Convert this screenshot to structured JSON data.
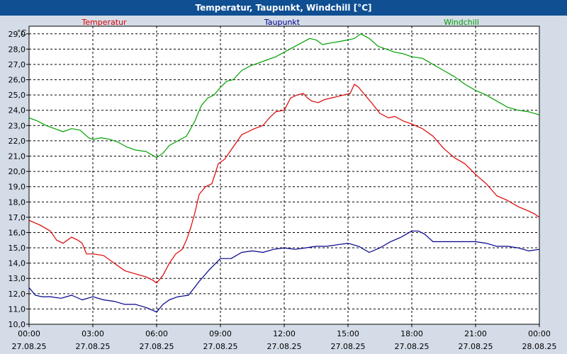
{
  "window": {
    "title": "Temperatur, Taupunkt, Windchill [°C]"
  },
  "chart_data": {
    "type": "line",
    "title": "Temperatur, Taupunkt, Windchill [°C]",
    "ylabel": "°C",
    "xlabel": "",
    "ylim": [
      10.0,
      29.5
    ],
    "xlim_hours": [
      0,
      24
    ],
    "grid": true,
    "y_ticks": [
      "10,0",
      "11,0",
      "12,0",
      "13,0",
      "14,0",
      "15,0",
      "16,0",
      "17,0",
      "18,0",
      "19,0",
      "20,0",
      "21,0",
      "22,0",
      "23,0",
      "24,0",
      "25,0",
      "26,0",
      "27,0",
      "28,0",
      "29,0"
    ],
    "x_ticks": [
      {
        "time": "00:00",
        "date": "27.08.25"
      },
      {
        "time": "03:00",
        "date": "27.08.25"
      },
      {
        "time": "06:00",
        "date": "27.08.25"
      },
      {
        "time": "09:00",
        "date": "27.08.25"
      },
      {
        "time": "12:00",
        "date": "27.08.25"
      },
      {
        "time": "15:00",
        "date": "27.08.25"
      },
      {
        "time": "18:00",
        "date": "27.08.25"
      },
      {
        "time": "21:00",
        "date": "27.08.25"
      },
      {
        "time": "00:00",
        "date": "28.08.25"
      }
    ],
    "series": [
      {
        "name": "Temperatur",
        "color": "#dd0000",
        "x": [
          0,
          0.5,
          1,
          1.3,
          1.6,
          1.8,
          2,
          2.3,
          2.5,
          2.7,
          3,
          3.5,
          3.8,
          4,
          4.5,
          5,
          5.5,
          5.8,
          6,
          6.3,
          6.6,
          6.9,
          7.2,
          7.4,
          7.6,
          7.8,
          8,
          8.3,
          8.6,
          8.9,
          9.2,
          9.6,
          10,
          10.3,
          10.6,
          11,
          11.3,
          11.6,
          12,
          12.3,
          12.6,
          12.9,
          13.1,
          13.3,
          13.6,
          13.9,
          14.2,
          14.5,
          14.8,
          15.1,
          15.3,
          15.5,
          15.8,
          16.1,
          16.5,
          16.9,
          17.2,
          17.6,
          18,
          18.5,
          19,
          19.5,
          20,
          20.5,
          21,
          21.5,
          22,
          22.5,
          23,
          23.5,
          23.8,
          24
        ],
        "values": [
          16.8,
          16.5,
          16.1,
          15.5,
          15.3,
          15.5,
          15.7,
          15.5,
          15.3,
          14.6,
          14.6,
          14.5,
          14.2,
          14.0,
          13.5,
          13.3,
          13.1,
          12.9,
          12.7,
          13.2,
          14.0,
          14.6,
          14.9,
          15.5,
          16.3,
          17.3,
          18.5,
          19.0,
          19.2,
          20.5,
          20.8,
          21.6,
          22.4,
          22.6,
          22.8,
          23.0,
          23.5,
          23.9,
          24.0,
          24.8,
          25.0,
          25.1,
          24.8,
          24.6,
          24.5,
          24.7,
          24.8,
          24.9,
          25.0,
          25.1,
          25.7,
          25.5,
          25.0,
          24.5,
          23.8,
          23.5,
          23.6,
          23.3,
          23.1,
          22.8,
          22.3,
          21.5,
          20.9,
          20.5,
          19.8,
          19.2,
          18.4,
          18.1,
          17.7,
          17.4,
          17.2,
          17.0
        ]
      },
      {
        "name": "Taupunkt",
        "color": "#00008b",
        "x": [
          0,
          0.3,
          0.6,
          1,
          1.5,
          2,
          2.5,
          3,
          3.5,
          4,
          4.5,
          5,
          5.5,
          6,
          6.3,
          6.6,
          7,
          7.5,
          8,
          8.5,
          9,
          9.5,
          10,
          10.5,
          11,
          11.5,
          12,
          12.5,
          13,
          13.5,
          14,
          14.5,
          15,
          15.5,
          16,
          16.5,
          17,
          17.5,
          18,
          18.3,
          18.6,
          19,
          19.5,
          20,
          20.5,
          21,
          21.5,
          22,
          22.5,
          23,
          23.5,
          24
        ],
        "values": [
          12.4,
          11.9,
          11.8,
          11.8,
          11.7,
          11.9,
          11.6,
          11.8,
          11.6,
          11.5,
          11.3,
          11.3,
          11.1,
          10.8,
          11.3,
          11.6,
          11.8,
          11.9,
          12.8,
          13.6,
          14.3,
          14.3,
          14.7,
          14.8,
          14.7,
          14.9,
          15.0,
          14.9,
          15.0,
          15.1,
          15.1,
          15.2,
          15.3,
          15.1,
          14.7,
          15.0,
          15.4,
          15.7,
          16.1,
          16.1,
          15.9,
          15.4,
          15.4,
          15.4,
          15.4,
          15.4,
          15.3,
          15.1,
          15.1,
          15.0,
          14.8,
          14.9
        ]
      },
      {
        "name": "Windchill",
        "color": "#00a000",
        "x": [
          0,
          0.4,
          0.8,
          1.2,
          1.6,
          2,
          2.4,
          2.8,
          3,
          3.4,
          3.8,
          4.2,
          4.6,
          5,
          5.5,
          6,
          6.3,
          6.6,
          7,
          7.4,
          7.8,
          8.1,
          8.4,
          8.7,
          9,
          9.3,
          9.6,
          10,
          10.4,
          10.8,
          11.2,
          11.6,
          12,
          12.4,
          12.8,
          13.2,
          13.5,
          13.8,
          14.2,
          14.6,
          15,
          15.3,
          15.6,
          16,
          16.4,
          16.8,
          17.2,
          17.6,
          18,
          18.5,
          19,
          19.5,
          20,
          20.5,
          21,
          21.5,
          22,
          22.5,
          23,
          23.5,
          24
        ],
        "values": [
          23.5,
          23.3,
          23.0,
          22.8,
          22.6,
          22.8,
          22.7,
          22.2,
          22.1,
          22.2,
          22.1,
          21.9,
          21.6,
          21.4,
          21.3,
          20.9,
          21.2,
          21.7,
          22.0,
          22.3,
          23.3,
          24.3,
          24.8,
          25.0,
          25.5,
          25.9,
          26.0,
          26.6,
          26.9,
          27.1,
          27.3,
          27.5,
          27.8,
          28.1,
          28.4,
          28.7,
          28.6,
          28.3,
          28.4,
          28.5,
          28.6,
          28.7,
          29.0,
          28.7,
          28.2,
          28.0,
          27.8,
          27.7,
          27.5,
          27.4,
          27.0,
          26.6,
          26.2,
          25.7,
          25.3,
          25.0,
          24.6,
          24.2,
          24.0,
          23.9,
          23.7
        ]
      }
    ]
  }
}
